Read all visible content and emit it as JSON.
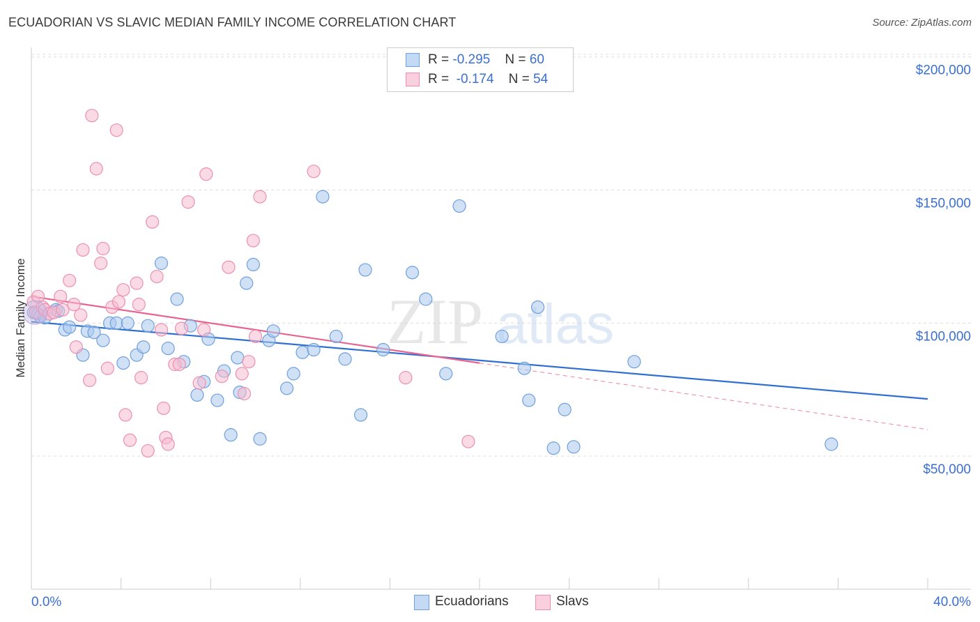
{
  "title": "ECUADORIAN VS SLAVIC MEDIAN FAMILY INCOME CORRELATION CHART",
  "source": "Source: ZipAtlas.com",
  "legend": {
    "rows": [
      {
        "r_label": "R = ",
        "r_value": "-0.295",
        "n_label": "N = ",
        "n_value": "60"
      },
      {
        "r_label": "R = ",
        "r_value": "-0.174",
        "n_label": "N = ",
        "n_value": "54"
      }
    ]
  },
  "bottom_legend": [
    "Ecuadorians",
    "Slavs"
  ],
  "watermark": {
    "zip": "ZIP",
    "atlas": "atlas"
  },
  "colors": {
    "blue_fill": "#a9c8ef",
    "blue_stroke": "#6f9fdc",
    "blue_line": "#2f6fd0",
    "pink_fill": "#f6bcd0",
    "pink_stroke": "#ec8fb0",
    "pink_line": "#e8648f",
    "axis_text": "#3b6fd0",
    "grid": "#dddddd"
  },
  "chart_data": {
    "type": "scatter",
    "title": "ECUADORIAN VS SLAVIC MEDIAN FAMILY INCOME CORRELATION CHART",
    "xlabel": "",
    "ylabel": "Median Family Income",
    "xlim": [
      0,
      40
    ],
    "ylim": [
      0,
      205000
    ],
    "x_tick_labels": [
      "0.0%",
      "40.0%"
    ],
    "y_ticks": [
      {
        "value": 50000,
        "label": "$50,000"
      },
      {
        "value": 100000,
        "label": "$100,000"
      },
      {
        "value": 150000,
        "label": "$150,000"
      },
      {
        "value": 200000,
        "label": "$200,000"
      }
    ],
    "series": [
      {
        "name": "Ecuadorians",
        "R": -0.295,
        "N": 60,
        "trend": {
          "x0": 0,
          "y0": 100500,
          "x1": 40,
          "y1": 71500,
          "solid_to": 40
        },
        "points": [
          [
            0.1,
            104000
          ],
          [
            0.3,
            103500
          ],
          [
            0.4,
            102500
          ],
          [
            0.6,
            102000
          ],
          [
            1.1,
            105000
          ],
          [
            1.2,
            104500
          ],
          [
            1.5,
            97500
          ],
          [
            1.7,
            98500
          ],
          [
            2.3,
            88000
          ],
          [
            2.5,
            97000
          ],
          [
            2.8,
            96500
          ],
          [
            3.2,
            93500
          ],
          [
            3.5,
            100000
          ],
          [
            3.8,
            100000
          ],
          [
            4.1,
            85000
          ],
          [
            4.3,
            100000
          ],
          [
            4.7,
            88000
          ],
          [
            5.0,
            91000
          ],
          [
            5.2,
            99000
          ],
          [
            5.8,
            122500
          ],
          [
            6.1,
            90500
          ],
          [
            6.5,
            109000
          ],
          [
            6.8,
            85500
          ],
          [
            7.1,
            99000
          ],
          [
            7.4,
            73000
          ],
          [
            7.7,
            78000
          ],
          [
            7.9,
            94000
          ],
          [
            8.3,
            71000
          ],
          [
            8.6,
            82000
          ],
          [
            8.9,
            58000
          ],
          [
            9.2,
            87000
          ],
          [
            9.3,
            74000
          ],
          [
            9.6,
            115000
          ],
          [
            9.9,
            122000
          ],
          [
            10.2,
            56500
          ],
          [
            10.6,
            93500
          ],
          [
            10.8,
            97000
          ],
          [
            11.4,
            75500
          ],
          [
            11.7,
            81000
          ],
          [
            12.1,
            89000
          ],
          [
            12.6,
            90000
          ],
          [
            13.0,
            147500
          ],
          [
            13.6,
            95000
          ],
          [
            14.0,
            86500
          ],
          [
            14.7,
            65500
          ],
          [
            14.9,
            120000
          ],
          [
            15.7,
            90000
          ],
          [
            17.0,
            119000
          ],
          [
            17.6,
            109000
          ],
          [
            18.5,
            81000
          ],
          [
            19.1,
            144000
          ],
          [
            21.0,
            95000
          ],
          [
            22.0,
            83000
          ],
          [
            22.2,
            71000
          ],
          [
            22.6,
            106000
          ],
          [
            23.3,
            53000
          ],
          [
            23.8,
            67500
          ],
          [
            24.2,
            53500
          ],
          [
            26.9,
            85500
          ],
          [
            35.7,
            54500
          ]
        ]
      },
      {
        "name": "Slavs",
        "R": -0.174,
        "N": 54,
        "trend": {
          "x0": 0,
          "y0": 110000,
          "x1": 40,
          "y1": 60000,
          "solid_to": 20
        },
        "points": [
          [
            0.1,
            108000
          ],
          [
            0.2,
            104000
          ],
          [
            0.3,
            110000
          ],
          [
            0.5,
            106000
          ],
          [
            0.6,
            105000
          ],
          [
            0.8,
            103500
          ],
          [
            1.0,
            104000
          ],
          [
            1.3,
            110000
          ],
          [
            1.4,
            105000
          ],
          [
            1.7,
            116000
          ],
          [
            1.9,
            107000
          ],
          [
            2.0,
            91000
          ],
          [
            2.2,
            103000
          ],
          [
            2.3,
            127500
          ],
          [
            2.6,
            78500
          ],
          [
            2.7,
            178000
          ],
          [
            2.9,
            158000
          ],
          [
            3.1,
            122500
          ],
          [
            3.2,
            128000
          ],
          [
            3.4,
            83000
          ],
          [
            3.6,
            106000
          ],
          [
            3.8,
            172500
          ],
          [
            3.9,
            108000
          ],
          [
            4.1,
            112500
          ],
          [
            4.2,
            65500
          ],
          [
            4.4,
            56000
          ],
          [
            4.7,
            115000
          ],
          [
            4.8,
            107000
          ],
          [
            4.9,
            79500
          ],
          [
            5.2,
            52000
          ],
          [
            5.4,
            138000
          ],
          [
            5.6,
            117500
          ],
          [
            5.8,
            97500
          ],
          [
            5.9,
            68000
          ],
          [
            6.0,
            57000
          ],
          [
            6.1,
            54500
          ],
          [
            6.4,
            84500
          ],
          [
            6.6,
            84500
          ],
          [
            6.7,
            98000
          ],
          [
            7.0,
            145500
          ],
          [
            7.5,
            77500
          ],
          [
            7.7,
            97500
          ],
          [
            7.8,
            156000
          ],
          [
            8.5,
            80000
          ],
          [
            8.8,
            121000
          ],
          [
            9.5,
            73500
          ],
          [
            9.7,
            85500
          ],
          [
            9.9,
            131000
          ],
          [
            10.0,
            95000
          ],
          [
            10.2,
            147500
          ],
          [
            12.6,
            157000
          ],
          [
            16.7,
            79500
          ],
          [
            19.5,
            55500
          ],
          [
            9.4,
            81000
          ]
        ]
      }
    ]
  }
}
